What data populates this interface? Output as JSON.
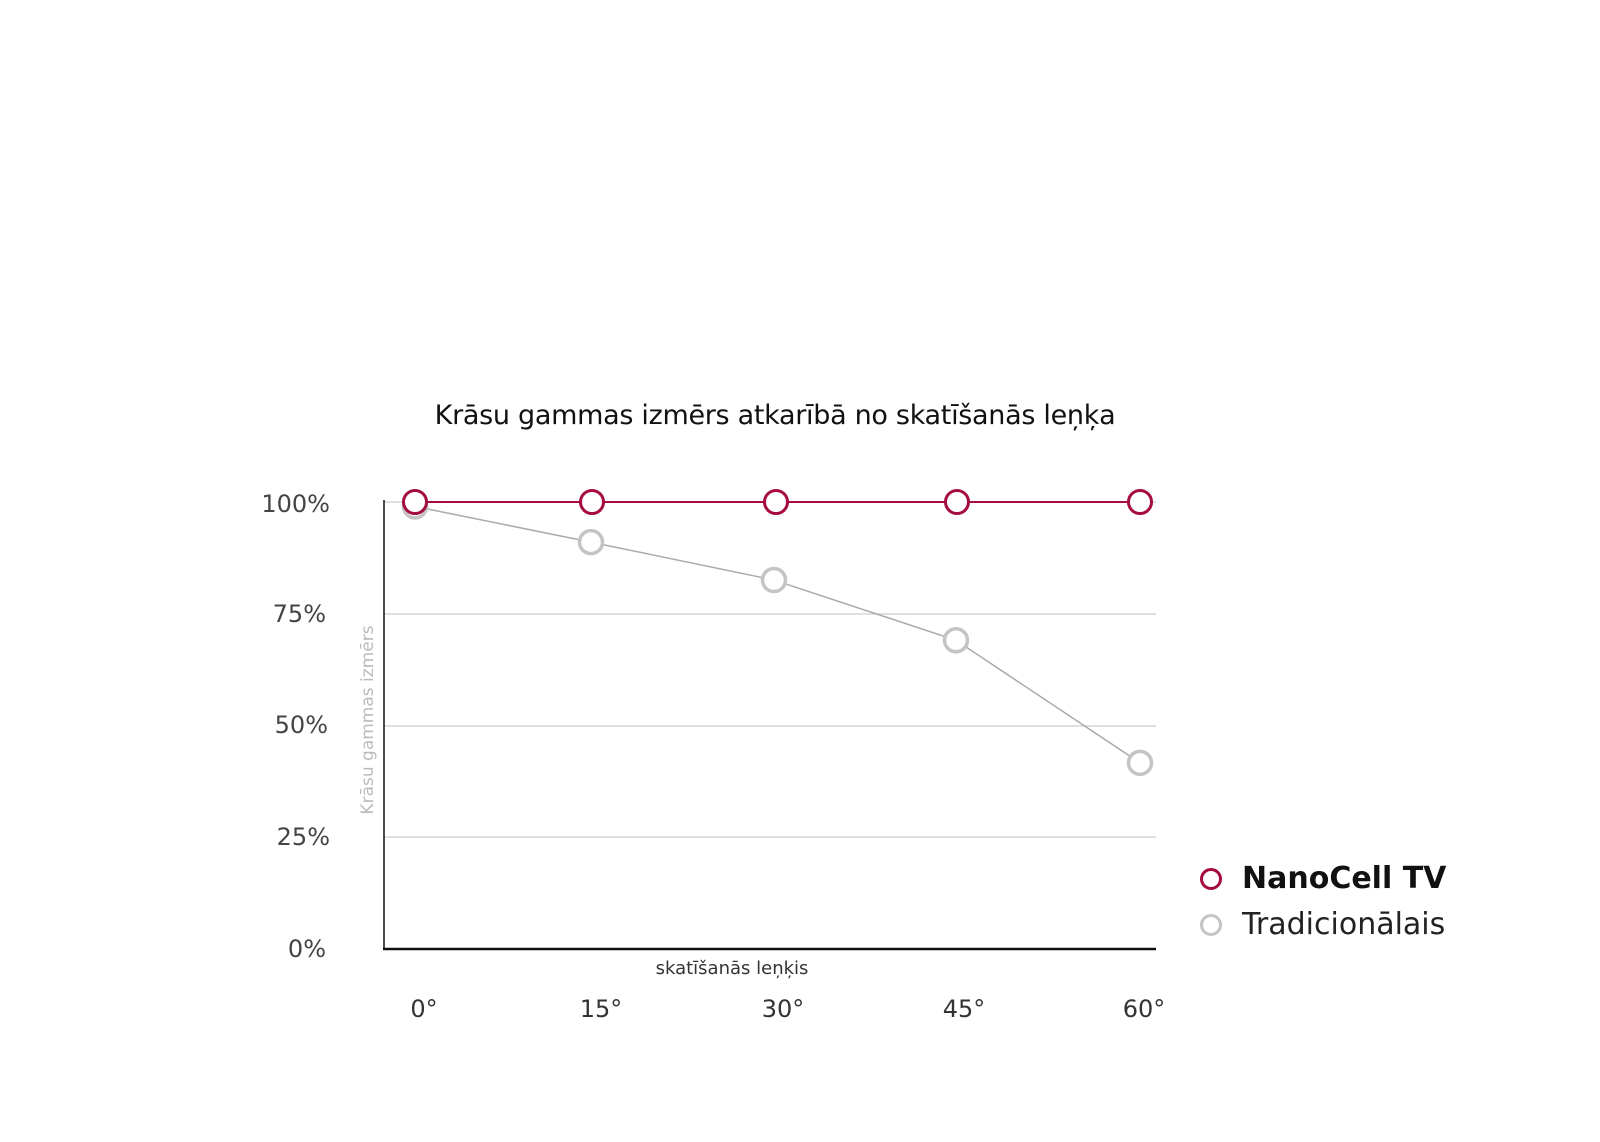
{
  "chart_data": {
    "type": "line",
    "title": "Krāsu gammas izmērs atkarībā no skatīšanās leņķa",
    "xlabel": "skatīšanās leņķis",
    "ylabel": "Krāsu gammas izmērs",
    "categories": [
      "0°",
      "15°",
      "30°",
      "45°",
      "60°"
    ],
    "y_ticks": [
      "100%",
      "75%",
      "50%",
      "25%",
      "0%"
    ],
    "ylim": [
      0,
      100
    ],
    "grid": true,
    "legend_position": "right-bottom",
    "series": [
      {
        "name": "NanoCell TV",
        "color": "#a50d3e",
        "values": [
          100,
          100,
          100,
          100,
          100
        ]
      },
      {
        "name": "Tradicionālais",
        "color": "#c4c4c4",
        "values": [
          99,
          91,
          82.5,
          69,
          41.5
        ]
      }
    ]
  },
  "legend": {
    "items": [
      {
        "label": "NanoCell TV",
        "color": "#a50d3e"
      },
      {
        "label": "Tradicionālais",
        "color": "#c4c4c4"
      }
    ]
  }
}
